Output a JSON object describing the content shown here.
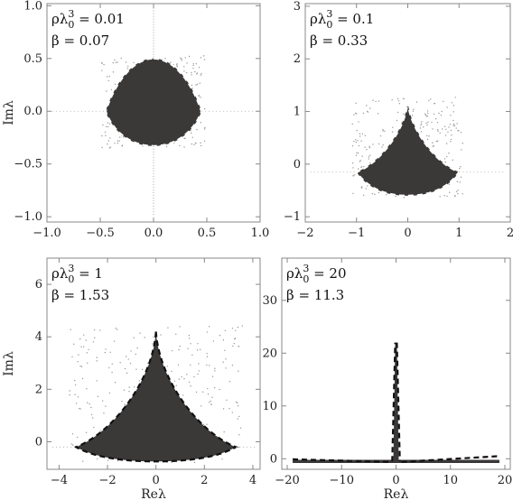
{
  "chart_data": [
    {
      "type": "scatter",
      "xlim": [
        -1.0,
        1.0
      ],
      "ylim": [
        -1.05,
        1.02
      ],
      "xticks": [
        "−1.0",
        "−0.5",
        "0.0",
        "0.5",
        "1.0"
      ],
      "xtick_values": [
        -1.0,
        -0.5,
        0.0,
        0.5,
        1.0
      ],
      "yticks": [
        "−1.0",
        "−0.5",
        "0.0",
        "0.5",
        "1.0"
      ],
      "ytick_values": [
        -1.0,
        -0.5,
        0.0,
        0.5,
        1.0
      ],
      "xlabel": "",
      "ylabel": "Imλ",
      "annotation_line1": "ρλ",
      "annotation_sub": "0",
      "annotation_sup": "3",
      "annotation_rest": " = 0.01",
      "annotation_line2": "β = 0.07",
      "boundary": {
        "re_left": -0.45,
        "re_right": 0.45,
        "im_top": 0.5,
        "im_bottom": -0.33,
        "im_widest": 0.0
      }
    },
    {
      "type": "scatter",
      "xlim": [
        -2,
        2
      ],
      "ylim": [
        -1.1,
        3.05
      ],
      "xticks": [
        "−2",
        "−1",
        "0",
        "1",
        "2"
      ],
      "xtick_values": [
        -2,
        -1,
        0,
        1,
        2
      ],
      "yticks": [
        "−1",
        "0",
        "1",
        "2",
        "3"
      ],
      "ytick_values": [
        -1,
        0,
        1,
        2,
        3
      ],
      "xlabel": "",
      "ylabel": "",
      "annotation_line1": "ρλ",
      "annotation_sub": "0",
      "annotation_sup": "3",
      "annotation_rest": " = 0.1",
      "annotation_line2": "β = 0.33",
      "boundary": {
        "re_left": -1.0,
        "re_right": 1.0,
        "im_top": 1.2,
        "im_bottom": -0.6,
        "im_widest": -0.15
      }
    },
    {
      "type": "scatter",
      "xlim": [
        -4.5,
        4.3
      ],
      "ylim": [
        -1.05,
        7.0
      ],
      "xticks": [
        "−4",
        "−2",
        "0",
        "2",
        "4"
      ],
      "xtick_values": [
        -4,
        -2,
        0,
        2,
        4
      ],
      "yticks": [
        "0",
        "2",
        "4",
        "6"
      ],
      "ytick_values": [
        0,
        2,
        4,
        6
      ],
      "xlabel": "Reλ",
      "ylabel": "Imλ",
      "annotation_line1": "ρλ",
      "annotation_sub": "0",
      "annotation_sup": "3",
      "annotation_rest": " = 1",
      "annotation_line2": "β = 1.53",
      "boundary": {
        "re_left": -3.3,
        "re_right": 3.3,
        "im_top": 4.2,
        "im_bottom": -0.75,
        "im_widest": -0.2
      }
    },
    {
      "type": "scatter",
      "xlim": [
        -21,
        21
      ],
      "ylim": [
        -2,
        38
      ],
      "xticks": [
        "−20",
        "−10",
        "0",
        "10",
        "20"
      ],
      "xtick_values": [
        -20,
        -10,
        0,
        10,
        20
      ],
      "yticks": [
        "0",
        "10",
        "20",
        "30"
      ],
      "ytick_values": [
        0,
        10,
        20,
        30
      ],
      "xlabel": "Reλ",
      "ylabel": "",
      "annotation_line1": "ρλ",
      "annotation_sub": "0",
      "annotation_sup": "3",
      "annotation_rest": " = 20",
      "annotation_line2": "β = 11.3",
      "boundary": {
        "re_left": -19,
        "re_right": 19,
        "im_top": 22,
        "im_bottom": -0.7,
        "im_widest": -0.2
      }
    }
  ]
}
